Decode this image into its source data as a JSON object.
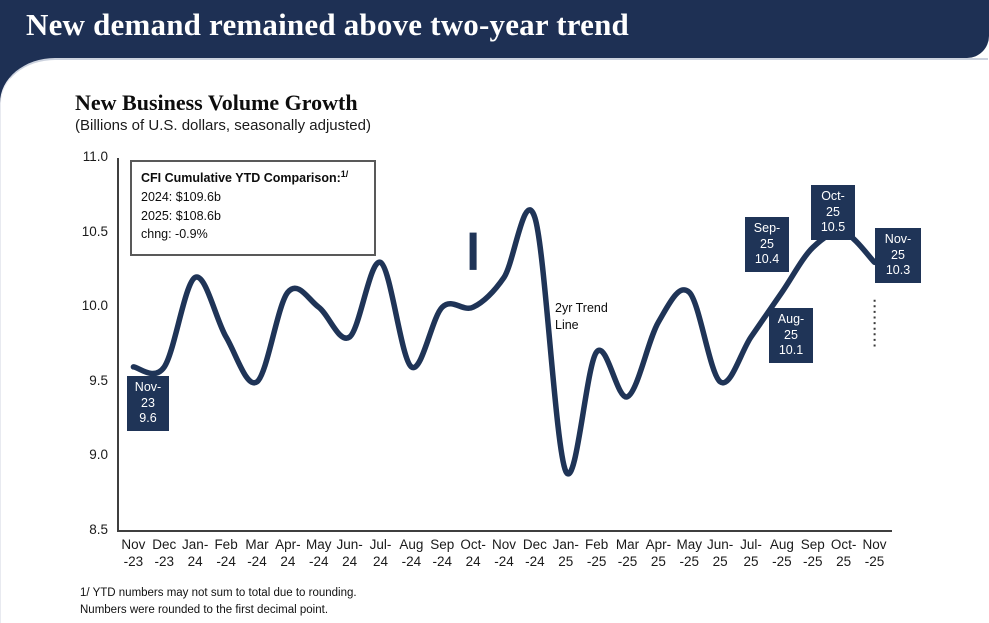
{
  "header": {
    "title": "New demand remained above two-year trend"
  },
  "chart": {
    "title": "New Business Volume Growth",
    "subtitle": "(Billions of U.S. dollars, seasonally adjusted)"
  },
  "info_box": {
    "title": "CFI Cumulative YTD Comparison:",
    "footnote_marker": "1/",
    "lines": [
      "2024: $109.6b",
      "2025: $108.6b",
      "chng: -0.9%"
    ]
  },
  "trend_label": {
    "line1": "2yr Trend",
    "line2": "Line"
  },
  "callouts": {
    "nov23": [
      "Nov-",
      "23",
      "9.6"
    ],
    "aug25": [
      "Aug-",
      "25",
      "10.1"
    ],
    "sep25": [
      "Sep-",
      "25",
      "10.4"
    ],
    "oct25": [
      "Oct-",
      "25",
      "10.5"
    ],
    "nov25": [
      "Nov-",
      "25",
      "10.3"
    ]
  },
  "footnotes": [
    "1/ YTD numbers may not sum to total due to rounding.",
    "Numbers were rounded to the first decimal point."
  ],
  "chart_data": {
    "type": "line",
    "title": "New Business Volume Growth",
    "subtitle": "(Billions of U.S. dollars, seasonally adjusted)",
    "categories": [
      "Nov-23",
      "Dec-23",
      "Jan-24",
      "Feb-24",
      "Mar-24",
      "Apr-24",
      "May-24",
      "Jun-24",
      "Jul-24",
      "Aug-24",
      "Sep-24",
      "Oct-24",
      "Nov-24",
      "Dec-24",
      "Jan-25",
      "Feb-25",
      "Mar-25",
      "Apr-25",
      "May-25",
      "Jun-25",
      "Jul-25",
      "Aug-25",
      "Sep-25",
      "Oct-25",
      "Nov-25"
    ],
    "categories_display": [
      [
        "Nov",
        "-23"
      ],
      [
        "Dec",
        "-23"
      ],
      [
        "Jan-",
        "24"
      ],
      [
        "Feb",
        "-24"
      ],
      [
        "Mar",
        "-24"
      ],
      [
        "Apr-",
        "24"
      ],
      [
        "May",
        "-24"
      ],
      [
        "Jun-",
        "24"
      ],
      [
        "Jul-",
        "24"
      ],
      [
        "Aug",
        "-24"
      ],
      [
        "Sep",
        "-24"
      ],
      [
        "Oct-",
        "24"
      ],
      [
        "Nov",
        "-24"
      ],
      [
        "Dec",
        "-24"
      ],
      [
        "Jan-",
        "25"
      ],
      [
        "Feb",
        "-25"
      ],
      [
        "Mar",
        "-25"
      ],
      [
        "Apr-",
        "25"
      ],
      [
        "May",
        "-25"
      ],
      [
        "Jun-",
        "25"
      ],
      [
        "Jul-",
        "25"
      ],
      [
        "Aug",
        "-25"
      ],
      [
        "Sep",
        "-25"
      ],
      [
        "Oct-",
        "25"
      ],
      [
        "Nov",
        "-25"
      ]
    ],
    "values": [
      9.6,
      9.6,
      10.2,
      9.8,
      9.5,
      10.1,
      10.0,
      9.8,
      10.3,
      9.6,
      10.0,
      10.0,
      10.2,
      10.6,
      8.9,
      9.7,
      9.4,
      9.9,
      10.1,
      9.5,
      9.8,
      10.1,
      10.4,
      10.5,
      10.3
    ],
    "labeled_points": [
      {
        "category": "Nov-23",
        "value": 9.6
      },
      {
        "category": "Aug-25",
        "value": 10.1
      },
      {
        "category": "Sep-25",
        "value": 10.4
      },
      {
        "category": "Oct-25",
        "value": 10.5
      },
      {
        "category": "Nov-25",
        "value": 10.3
      }
    ],
    "ylim": [
      8.5,
      11.0
    ],
    "yticks": [
      "11.0",
      "10.5",
      "10.0",
      "9.5",
      "9.0",
      "8.5"
    ],
    "grid": false,
    "legend": "none",
    "line_color": "#1f3457",
    "annotations": {
      "bar_marker": {
        "category": "Oct-24",
        "value_top": 10.5,
        "value_bottom": 10.25
      },
      "dotted_line": {
        "category": "Nov-25",
        "value_top": 10.05,
        "value_bottom": 9.72
      },
      "trend_text": "2yr Trend Line"
    }
  }
}
